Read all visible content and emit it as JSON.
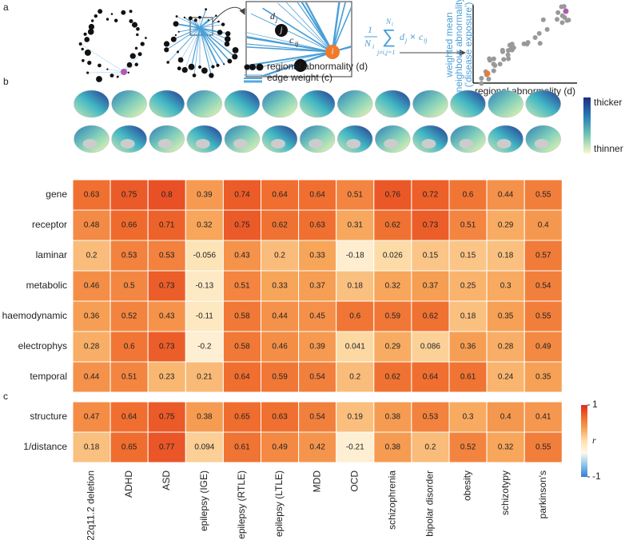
{
  "panel_labels": [
    "a",
    "b",
    "c"
  ],
  "diagram": {
    "node_label_dj": "d",
    "node_label_dj_sub": "j",
    "node_j": "j",
    "edge_label": "c",
    "edge_label_sub": "ij",
    "node_i": "i",
    "legend_abnormality": "regional abnormality (d)",
    "legend_edge": "edge weight (c)",
    "formula": {
      "numerator": "1",
      "denominator": "N",
      "denominator_sub": "i",
      "sum": "∑",
      "sum_top": "N",
      "sum_top_sub": "i",
      "sum_bottom": "j≠i,j=1",
      "term": "d",
      "term_sub": "j",
      "times": "×",
      "term2": "c",
      "term2_sub": "ij"
    },
    "scatter_xlabel": "regional abnormality (d)",
    "scatter_ylabel": [
      "weighted mean",
      "neighbour abnormality",
      "('disease exposure')"
    ]
  },
  "thickness_colorbar": {
    "top": "thicker",
    "bottom": "thinner"
  },
  "chart_data": [
    {
      "type": "heatmap",
      "rows": [
        "gene",
        "receptor",
        "laminar",
        "metabolic",
        "haemodynamic",
        "electrophys",
        "temporal"
      ],
      "values": [
        [
          0.63,
          0.75,
          0.8,
          0.39,
          0.74,
          0.64,
          0.64,
          0.51,
          0.76,
          0.72,
          0.6,
          0.44,
          0.55
        ],
        [
          0.48,
          0.66,
          0.71,
          0.32,
          0.75,
          0.62,
          0.63,
          0.31,
          0.62,
          0.73,
          0.51,
          0.29,
          0.4
        ],
        [
          0.2,
          0.53,
          0.53,
          -0.056,
          0.43,
          0.2,
          0.33,
          -0.18,
          0.026,
          0.15,
          0.15,
          0.18,
          0.57
        ],
        [
          0.46,
          0.5,
          0.73,
          -0.13,
          0.51,
          0.33,
          0.37,
          0.18,
          0.32,
          0.37,
          0.25,
          0.3,
          0.54
        ],
        [
          0.36,
          0.52,
          0.43,
          -0.11,
          0.58,
          0.44,
          0.45,
          0.6,
          0.59,
          0.62,
          0.18,
          0.35,
          0.55
        ],
        [
          0.28,
          0.6,
          0.73,
          -0.2,
          0.58,
          0.46,
          0.39,
          0.041,
          0.29,
          0.086,
          0.36,
          0.28,
          0.49
        ],
        [
          0.44,
          0.51,
          0.23,
          0.21,
          0.64,
          0.59,
          0.54,
          0.2,
          0.62,
          0.64,
          0.61,
          0.24,
          0.35
        ]
      ],
      "clim": [
        -1,
        1
      ],
      "colormap": [
        "#2f7fd0",
        "#8cc4ec",
        "#fff8ea",
        "#fde0ad",
        "#f7a458",
        "#ef6a2c",
        "#e02a1e"
      ]
    },
    {
      "type": "heatmap",
      "rows": [
        "structure",
        "1/distance"
      ],
      "categories": [
        "22q11.2 deletion",
        "ADHD",
        "ASD",
        "epilepsy (IGE)",
        "epilepsy (RTLE)",
        "epilepsy (LTLE)",
        "MDD",
        "OCD",
        "schizophrenia",
        "bipolar disorder",
        "obesity",
        "schizotypy",
        "parkinson's"
      ],
      "values": [
        [
          0.47,
          0.64,
          0.75,
          0.38,
          0.65,
          0.63,
          0.54,
          0.19,
          0.38,
          0.53,
          0.3,
          0.4,
          0.41
        ],
        [
          0.18,
          0.65,
          0.77,
          0.094,
          0.61,
          0.49,
          0.42,
          -0.21,
          0.38,
          0.2,
          0.52,
          0.32,
          0.55
        ]
      ],
      "clim": [
        -1,
        1
      ],
      "colormap": [
        "#2f7fd0",
        "#8cc4ec",
        "#fff8ea",
        "#fde0ad",
        "#f7a458",
        "#ef6a2c",
        "#e02a1e"
      ],
      "colorbar_ticks": [
        1,
        -1
      ],
      "colorbar_label": "r"
    }
  ]
}
